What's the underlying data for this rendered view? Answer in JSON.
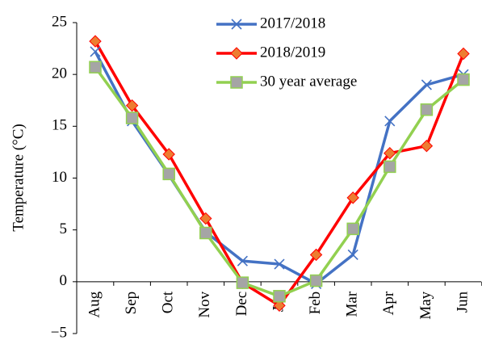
{
  "chart_data": {
    "type": "line",
    "y_label": "Temperature (°C)",
    "categories": [
      "Aug",
      "Sep",
      "Oct",
      "Nov",
      "Dec",
      "Jan",
      "Feb",
      "Mar",
      "Apr",
      "May",
      "Jun"
    ],
    "series": [
      {
        "name": "2017/2018",
        "color": "#4472c4",
        "marker": "x",
        "marker_color": "#4472c4",
        "values": [
          22.2,
          15.5,
          10.3,
          4.8,
          2.0,
          1.7,
          -0.2,
          2.6,
          15.5,
          19.0,
          20.0
        ]
      },
      {
        "name": "2018/2019",
        "color": "#ff0000",
        "marker": "diamond",
        "marker_color": "#ed7d31",
        "values": [
          23.2,
          17.0,
          12.3,
          6.1,
          -0.1,
          -2.3,
          2.6,
          8.1,
          12.4,
          13.1,
          22.0
        ]
      },
      {
        "name": "30 year average",
        "color": "#92d050",
        "marker": "square",
        "marker_color": "#a5a5a5",
        "values": [
          20.7,
          15.8,
          10.4,
          4.7,
          -0.1,
          -1.4,
          0.1,
          5.1,
          11.1,
          16.6,
          19.5
        ]
      }
    ],
    "ylim": [
      -5,
      25
    ],
    "yticks": [
      {
        "value": -5,
        "label": "−5"
      },
      0,
      5,
      10,
      15,
      20,
      25
    ],
    "grid": false,
    "legend": "top"
  }
}
